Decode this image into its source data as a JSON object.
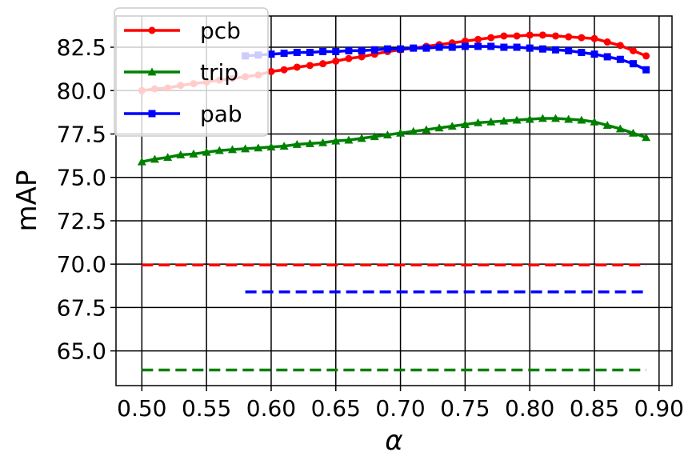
{
  "chart_data": {
    "type": "line",
    "xlabel": "α",
    "ylabel": "mAP",
    "xlim": [
      0.48,
      0.91
    ],
    "ylim": [
      63.0,
      84.3
    ],
    "x_ticks": [
      "0.50",
      "0.55",
      "0.60",
      "0.65",
      "0.70",
      "0.75",
      "0.80",
      "0.85",
      "0.90"
    ],
    "y_ticks": [
      "65.0",
      "67.5",
      "70.0",
      "72.5",
      "75.0",
      "77.5",
      "80.0",
      "82.5"
    ],
    "grid": true,
    "legend_position": "top-left",
    "series": [
      {
        "name": "pcb",
        "color": "#ff0000",
        "marker": "circle",
        "x": [
          0.5,
          0.51,
          0.52,
          0.53,
          0.54,
          0.55,
          0.56,
          0.57,
          0.58,
          0.59,
          0.6,
          0.61,
          0.62,
          0.63,
          0.64,
          0.65,
          0.66,
          0.67,
          0.68,
          0.69,
          0.7,
          0.71,
          0.72,
          0.73,
          0.74,
          0.75,
          0.76,
          0.77,
          0.78,
          0.79,
          0.8,
          0.81,
          0.82,
          0.83,
          0.84,
          0.85,
          0.86,
          0.87,
          0.88,
          0.89
        ],
        "values": [
          80.0,
          80.1,
          80.15,
          80.3,
          80.4,
          80.5,
          80.6,
          80.7,
          80.8,
          80.9,
          81.1,
          81.2,
          81.35,
          81.45,
          81.55,
          81.7,
          81.85,
          81.95,
          82.1,
          82.25,
          82.35,
          82.45,
          82.55,
          82.65,
          82.75,
          82.85,
          82.95,
          83.05,
          83.15,
          83.15,
          83.2,
          83.2,
          83.15,
          83.1,
          83.05,
          83.0,
          82.8,
          82.6,
          82.3,
          82.0
        ]
      },
      {
        "name": "trip",
        "color": "#008000",
        "marker": "triangle",
        "x": [
          0.5,
          0.51,
          0.52,
          0.53,
          0.54,
          0.55,
          0.56,
          0.57,
          0.58,
          0.59,
          0.6,
          0.61,
          0.62,
          0.63,
          0.64,
          0.65,
          0.66,
          0.67,
          0.68,
          0.69,
          0.7,
          0.71,
          0.72,
          0.73,
          0.74,
          0.75,
          0.76,
          0.77,
          0.78,
          0.79,
          0.8,
          0.81,
          0.82,
          0.83,
          0.84,
          0.85,
          0.86,
          0.87,
          0.88,
          0.89
        ],
        "values": [
          75.9,
          76.05,
          76.15,
          76.3,
          76.35,
          76.45,
          76.55,
          76.6,
          76.65,
          76.7,
          76.75,
          76.8,
          76.9,
          76.95,
          77.0,
          77.1,
          77.15,
          77.25,
          77.35,
          77.45,
          77.55,
          77.65,
          77.75,
          77.85,
          77.95,
          78.05,
          78.15,
          78.2,
          78.25,
          78.3,
          78.35,
          78.4,
          78.4,
          78.35,
          78.3,
          78.2,
          78.0,
          77.8,
          77.55,
          77.3
        ]
      },
      {
        "name": "pab",
        "color": "#0000ff",
        "marker": "square",
        "x": [
          0.58,
          0.59,
          0.6,
          0.61,
          0.62,
          0.63,
          0.64,
          0.65,
          0.66,
          0.67,
          0.68,
          0.69,
          0.7,
          0.71,
          0.72,
          0.73,
          0.74,
          0.75,
          0.76,
          0.77,
          0.78,
          0.79,
          0.8,
          0.81,
          0.82,
          0.83,
          0.84,
          0.85,
          0.86,
          0.87,
          0.88,
          0.89
        ],
        "values": [
          82.0,
          82.05,
          82.1,
          82.15,
          82.2,
          82.2,
          82.25,
          82.25,
          82.3,
          82.3,
          82.35,
          82.4,
          82.4,
          82.45,
          82.45,
          82.5,
          82.5,
          82.55,
          82.55,
          82.55,
          82.5,
          82.5,
          82.45,
          82.4,
          82.35,
          82.3,
          82.2,
          82.1,
          81.95,
          81.8,
          81.55,
          81.2
        ]
      }
    ],
    "baselines": [
      {
        "color": "#ff0000",
        "value": 69.95,
        "x_start": 0.5,
        "x_end": 0.89
      },
      {
        "color": "#0000ff",
        "value": 68.4,
        "x_start": 0.58,
        "x_end": 0.89
      },
      {
        "color": "#008000",
        "value": 63.9,
        "x_start": 0.5,
        "x_end": 0.89
      }
    ]
  }
}
